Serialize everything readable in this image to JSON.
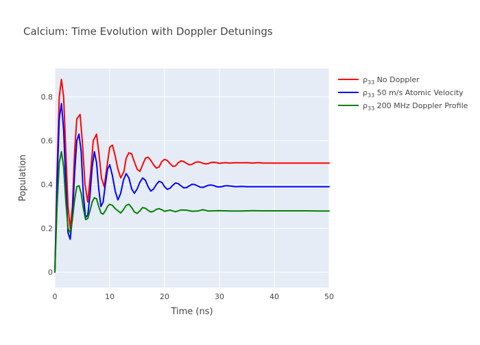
{
  "chart_data": {
    "type": "line",
    "title": "Calcium: Time Evolution with Doppler Detunings",
    "xlabel": "Time (ns)",
    "ylabel": "Population",
    "xlim": [
      0,
      50
    ],
    "ylim": [
      -0.07,
      0.93
    ],
    "x_ticks": [
      0,
      10,
      20,
      30,
      40,
      50
    ],
    "x_tick_labels": [
      "0",
      "10",
      "20",
      "30",
      "40",
      "50"
    ],
    "y_ticks": [
      0,
      0.2,
      0.4,
      0.6,
      0.8
    ],
    "y_tick_labels": [
      "0",
      "0.2",
      "0.4",
      "0.6",
      "0.8"
    ],
    "grid": true,
    "legend_position": "top-right outside",
    "background_color": "#e5ecf6",
    "series": [
      {
        "name": "ρ33 No Doppler",
        "label_main": "ρ",
        "label_sub": "33",
        "label_rest": " No Doppler",
        "color": "#ff0000",
        "x": [
          0,
          0.4,
          0.8,
          1.2,
          1.6,
          2.0,
          2.4,
          2.8,
          3.2,
          3.6,
          4.0,
          4.6,
          5.0,
          5.5,
          6.0,
          6.5,
          7.0,
          7.6,
          8.0,
          8.5,
          9.0,
          9.6,
          10.0,
          10.5,
          11.0,
          11.5,
          12.0,
          12.6,
          13.0,
          13.5,
          14.0,
          14.4,
          15.0,
          15.5,
          16.0,
          16.5,
          17.0,
          17.5,
          18.0,
          18.5,
          19.0,
          19.5,
          20.0,
          20.5,
          21.0,
          21.5,
          22.0,
          22.5,
          23.0,
          23.5,
          24.0,
          24.5,
          25.0,
          25.5,
          26.0,
          26.5,
          27.0,
          27.5,
          28.0,
          28.5,
          29.0,
          29.5,
          30.0,
          31.0,
          32.0,
          33.0,
          34.0,
          35.0,
          36.0,
          37.0,
          38.0,
          40.0,
          42.0,
          44.0,
          46.0,
          48.0,
          50.0
        ],
        "y": [
          0.0,
          0.45,
          0.8,
          0.88,
          0.8,
          0.55,
          0.3,
          0.2,
          0.3,
          0.55,
          0.7,
          0.72,
          0.6,
          0.4,
          0.32,
          0.45,
          0.6,
          0.63,
          0.55,
          0.43,
          0.39,
          0.5,
          0.57,
          0.58,
          0.53,
          0.47,
          0.43,
          0.46,
          0.52,
          0.545,
          0.54,
          0.51,
          0.47,
          0.46,
          0.49,
          0.52,
          0.525,
          0.51,
          0.49,
          0.475,
          0.48,
          0.505,
          0.515,
          0.51,
          0.495,
          0.483,
          0.485,
          0.5,
          0.508,
          0.505,
          0.497,
          0.49,
          0.492,
          0.5,
          0.504,
          0.502,
          0.497,
          0.494,
          0.496,
          0.501,
          0.502,
          0.5,
          0.497,
          0.5,
          0.498,
          0.5,
          0.499,
          0.5,
          0.498,
          0.5,
          0.498,
          0.498,
          0.498,
          0.498,
          0.498,
          0.498,
          0.498
        ]
      },
      {
        "name": "ρ33 50 m/s Atomic Velocity",
        "label_main": "ρ",
        "label_sub": "33",
        "label_rest": " 50 m/s Atomic Velocity",
        "color": "#0000ff",
        "x": [
          0,
          0.4,
          0.8,
          1.2,
          1.6,
          2.0,
          2.4,
          2.8,
          3.2,
          3.6,
          4.0,
          4.4,
          4.8,
          5.2,
          5.6,
          6.0,
          6.4,
          6.8,
          7.2,
          7.6,
          8.0,
          8.4,
          8.8,
          9.2,
          9.6,
          10.0,
          10.5,
          11.0,
          11.5,
          12.0,
          12.5,
          13.0,
          13.5,
          14.0,
          14.5,
          15.0,
          15.5,
          16.0,
          16.5,
          17.0,
          17.5,
          18.0,
          18.5,
          19.0,
          19.5,
          20.0,
          20.5,
          21.0,
          21.5,
          22.0,
          22.5,
          23.0,
          23.5,
          24.0,
          24.5,
          25.0,
          25.5,
          26.0,
          26.5,
          27.0,
          27.5,
          28.0,
          28.5,
          29.0,
          29.5,
          30.0,
          30.5,
          31.0,
          31.5,
          32.0,
          33.0,
          34.0,
          35.0,
          36.0,
          37.0,
          38.0,
          40.0,
          42.0,
          44.0,
          46.0,
          48.0,
          50.0
        ],
        "y": [
          0.0,
          0.4,
          0.7,
          0.77,
          0.65,
          0.4,
          0.18,
          0.15,
          0.25,
          0.45,
          0.6,
          0.63,
          0.55,
          0.35,
          0.25,
          0.26,
          0.35,
          0.48,
          0.55,
          0.5,
          0.38,
          0.3,
          0.32,
          0.4,
          0.47,
          0.49,
          0.44,
          0.37,
          0.33,
          0.36,
          0.42,
          0.45,
          0.43,
          0.38,
          0.36,
          0.38,
          0.41,
          0.43,
          0.42,
          0.39,
          0.37,
          0.38,
          0.4,
          0.415,
          0.41,
          0.39,
          0.378,
          0.383,
          0.397,
          0.407,
          0.404,
          0.394,
          0.385,
          0.386,
          0.394,
          0.401,
          0.4,
          0.394,
          0.388,
          0.387,
          0.392,
          0.397,
          0.398,
          0.395,
          0.39,
          0.389,
          0.391,
          0.394,
          0.395,
          0.393,
          0.39,
          0.392,
          0.39,
          0.39,
          0.39,
          0.39,
          0.39,
          0.39,
          0.39,
          0.39,
          0.39,
          0.39
        ]
      },
      {
        "name": "ρ33 200 MHz Doppler Profile",
        "label_main": "ρ",
        "label_sub": "33",
        "label_rest": " 200 MHz Doppler Profile",
        "color": "#008000",
        "x": [
          0,
          0.4,
          0.8,
          1.2,
          1.6,
          2.0,
          2.4,
          2.8,
          3.2,
          3.6,
          4.0,
          4.4,
          4.8,
          5.2,
          5.6,
          6.0,
          6.4,
          6.8,
          7.2,
          7.6,
          8.0,
          8.4,
          8.8,
          9.2,
          9.6,
          10.0,
          10.5,
          11.0,
          11.5,
          12.0,
          12.5,
          13.0,
          13.5,
          14.0,
          14.5,
          15.0,
          15.5,
          16.0,
          16.5,
          17.0,
          17.5,
          18.0,
          18.5,
          19.0,
          19.5,
          20.0,
          21.0,
          22.0,
          23.0,
          24.0,
          25.0,
          26.0,
          27.0,
          28.0,
          29.0,
          30.0,
          32.0,
          34.0,
          36.0,
          38.0,
          40.0,
          42.0,
          44.0,
          46.0,
          48.0,
          50.0
        ],
        "y": [
          0.0,
          0.3,
          0.5,
          0.55,
          0.48,
          0.32,
          0.2,
          0.18,
          0.24,
          0.33,
          0.39,
          0.395,
          0.36,
          0.29,
          0.24,
          0.245,
          0.28,
          0.32,
          0.34,
          0.335,
          0.3,
          0.27,
          0.265,
          0.28,
          0.3,
          0.31,
          0.305,
          0.29,
          0.28,
          0.27,
          0.285,
          0.305,
          0.31,
          0.295,
          0.275,
          0.268,
          0.28,
          0.295,
          0.292,
          0.282,
          0.275,
          0.278,
          0.287,
          0.29,
          0.285,
          0.278,
          0.283,
          0.276,
          0.284,
          0.283,
          0.278,
          0.279,
          0.285,
          0.279,
          0.28,
          0.281,
          0.279,
          0.279,
          0.281,
          0.28,
          0.28,
          0.28,
          0.28,
          0.28,
          0.279,
          0.279
        ]
      }
    ]
  }
}
